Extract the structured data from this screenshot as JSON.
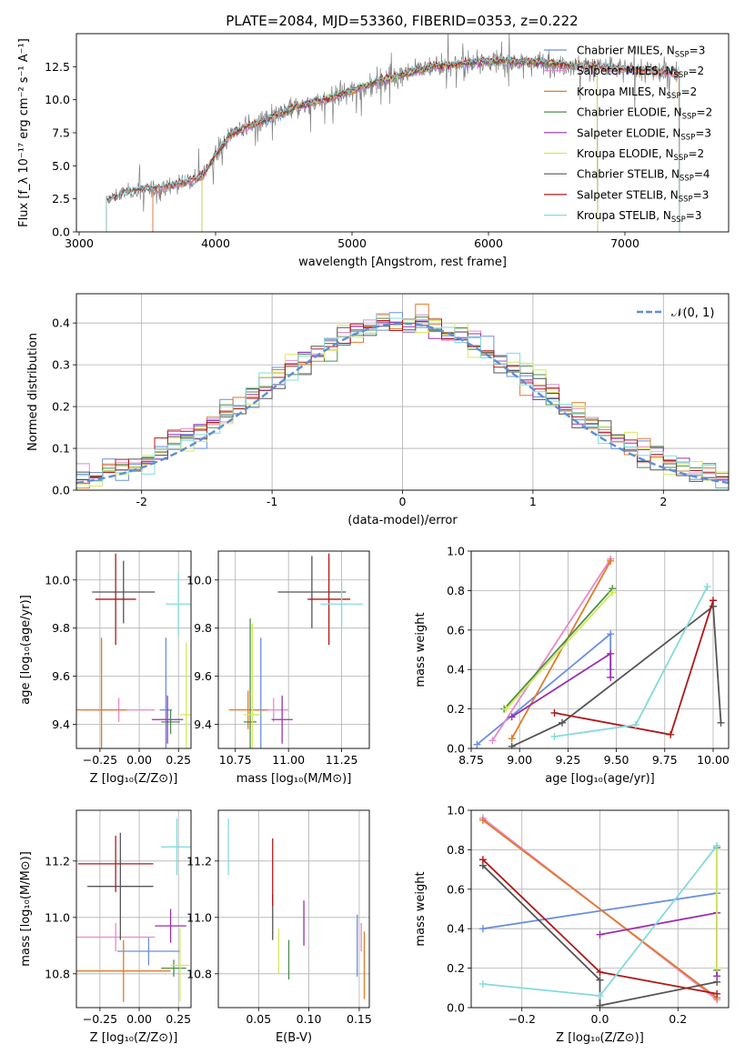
{
  "figure": {
    "title": "PLATE=2084, MJD=53360, FIBERID=0353, z=0.222"
  },
  "colors": {
    "Chabrier MILES": "#6a8fe0",
    "Salpeter MILES": "#e889c8",
    "Kroupa MILES": "#e07a2a",
    "Chabrier ELODIE": "#4a8f4a",
    "Salpeter ELODIE": "#9a2fb0",
    "Kroupa ELODIE": "#d4ea5a",
    "Chabrier STELIB": "#555555",
    "Salpeter STELIB": "#b01818",
    "Kroupa STELIB": "#84dadc",
    "data": "#808080",
    "normal": "#5b8fd8"
  },
  "chart_data": [
    {
      "type": "line",
      "panel": "spectrum",
      "xlabel": "wavelength [Angstrom, rest frame]",
      "ylabel": "Flux [f_λ 10⁻¹⁷ erg cm⁻² s⁻¹ A⁻¹]",
      "xlim": [
        2980,
        7760
      ],
      "ylim": [
        0,
        15
      ],
      "xticks": [
        3000,
        4000,
        5000,
        6000,
        7000
      ],
      "yticks": [
        0.0,
        2.5,
        5.0,
        7.5,
        10.0,
        12.5
      ],
      "grid": false,
      "legend_position": "top-right",
      "legend": [
        {
          "name": "Chabrier MILES",
          "nssp": 3
        },
        {
          "name": "Salpeter MILES",
          "nssp": 2
        },
        {
          "name": "Kroupa MILES",
          "nssp": 2
        },
        {
          "name": "Chabrier ELODIE",
          "nssp": 2
        },
        {
          "name": "Salpeter ELODIE",
          "nssp": 3
        },
        {
          "name": "Kroupa ELODIE",
          "nssp": 2
        },
        {
          "name": "Chabrier STELIB",
          "nssp": 4
        },
        {
          "name": "Salpeter STELIB",
          "nssp": 3
        },
        {
          "name": "Kroupa STELIB",
          "nssp": 3
        }
      ],
      "trend": {
        "x": [
          3200,
          3300,
          3400,
          3500,
          3600,
          3700,
          3800,
          3900,
          4000,
          4100,
          4200,
          4400,
          4600,
          4800,
          5000,
          5200,
          5400,
          5600,
          5800,
          6000,
          6200,
          6400,
          6600,
          6800,
          7000,
          7200,
          7400
        ],
        "y": [
          2.3,
          2.8,
          3.1,
          3.2,
          3.3,
          3.6,
          3.8,
          4.2,
          5.8,
          7.3,
          7.8,
          8.6,
          9.5,
          10.0,
          10.7,
          11.4,
          12.0,
          12.5,
          12.7,
          12.9,
          12.9,
          12.8,
          12.6,
          12.5,
          12.3,
          12.2,
          12.0
        ]
      },
      "model_ranges": {
        "MILES": [
          3540,
          7400
        ],
        "ELODIE": [
          3900,
          6800
        ],
        "STELIB": [
          3200,
          7400
        ]
      }
    },
    {
      "type": "histogram",
      "panel": "residuals",
      "xlabel": "(data-model)/error",
      "ylabel": "Normed distribution",
      "xlim": [
        -2.5,
        2.5
      ],
      "ylim": [
        0,
        0.47
      ],
      "xticks": [
        -2,
        -1,
        0,
        1,
        2
      ],
      "yticks": [
        0.0,
        0.1,
        0.2,
        0.3,
        0.4
      ],
      "grid": true,
      "bin_width": 0.1,
      "legend_position": "top-right",
      "legend": "𝒩(0, 1)",
      "normal": {
        "mean": 0,
        "sigma": 1
      }
    },
    {
      "type": "scatter",
      "panel": "age-vs-metallicity",
      "xlabel": "Z [log₁₀(Z/Z⊙)]",
      "ylabel": "age  [log₁₀(age/yr)]",
      "xlim": [
        -0.4,
        0.33
      ],
      "ylim": [
        9.3,
        10.12
      ],
      "xticks": [
        -0.25,
        0.0,
        0.25
      ],
      "xticklabels": [
        "−0.25",
        "0.00",
        "0.25"
      ],
      "yticks": [
        9.4,
        9.6,
        9.8,
        10.0
      ],
      "grid": true,
      "points": [
        {
          "series": "Chabrier MILES",
          "x": 0.17,
          "y": 9.46,
          "xerr": 0.04,
          "yerr": 0.3
        },
        {
          "series": "Salpeter MILES",
          "x": -0.13,
          "y": 9.46,
          "xerr": 0.23,
          "yerr": 0.05
        },
        {
          "series": "Kroupa MILES",
          "x": -0.24,
          "y": 9.46,
          "xerr": 0.16,
          "yerr": 0.3
        },
        {
          "series": "Chabrier ELODIE",
          "x": 0.2,
          "y": 9.41,
          "xerr": 0.06,
          "yerr": 0.05
        },
        {
          "series": "Salpeter ELODIE",
          "x": 0.18,
          "y": 9.42,
          "xerr": 0.1,
          "yerr": 0.1
        },
        {
          "series": "Kroupa ELODIE",
          "x": 0.3,
          "y": 9.44,
          "xerr": 0.04,
          "yerr": 0.3
        },
        {
          "series": "Chabrier STELIB",
          "x": -0.1,
          "y": 9.95,
          "xerr": 0.2,
          "yerr": 0.13
        },
        {
          "series": "Salpeter STELIB",
          "x": -0.15,
          "y": 9.92,
          "xerr": 0.13,
          "yerr": 0.19
        },
        {
          "series": "Kroupa STELIB",
          "x": 0.25,
          "y": 9.9,
          "xerr": 0.08,
          "yerr": 0.13
        }
      ]
    },
    {
      "type": "scatter",
      "panel": "age-vs-mass",
      "xlabel": "mass [log₁₀(M/M⊙)]",
      "ylabel": "",
      "xlim": [
        10.67,
        11.38
      ],
      "ylim": [
        9.3,
        10.12
      ],
      "xticks": [
        10.75,
        11.0,
        11.25
      ],
      "xticklabels": [
        "10.75",
        "11.00",
        "11.25"
      ],
      "yticks": [
        9.4,
        9.6,
        9.8,
        10.0
      ],
      "grid": true,
      "points": [
        {
          "series": "Chabrier MILES",
          "x": 10.87,
          "y": 9.46,
          "xerr": 0.03,
          "yerr": 0.3
        },
        {
          "series": "Salpeter MILES",
          "x": 10.93,
          "y": 9.46,
          "xerr": 0.07,
          "yerr": 0.05
        },
        {
          "series": "Kroupa MILES",
          "x": 10.81,
          "y": 9.46,
          "xerr": 0.09,
          "yerr": 0.08
        },
        {
          "series": "Chabrier ELODIE",
          "x": 10.82,
          "y": 9.41,
          "xerr": 0.03,
          "yerr": 0.43
        },
        {
          "series": "Salpeter ELODIE",
          "x": 10.97,
          "y": 9.42,
          "xerr": 0.05,
          "yerr": 0.1
        },
        {
          "series": "Kroupa ELODIE",
          "x": 10.83,
          "y": 9.44,
          "xerr": 0.04,
          "yerr": 0.38
        },
        {
          "series": "Chabrier STELIB",
          "x": 11.11,
          "y": 9.95,
          "xerr": 0.16,
          "yerr": 0.15
        },
        {
          "series": "Salpeter STELIB",
          "x": 11.19,
          "y": 9.92,
          "xerr": 0.1,
          "yerr": 0.19
        },
        {
          "series": "Kroupa STELIB",
          "x": 11.25,
          "y": 9.9,
          "xerr": 0.1,
          "yerr": 0.1
        }
      ]
    },
    {
      "type": "line",
      "panel": "mass-weight-vs-age",
      "xlabel": "age  [log₁₀(age/yr)]",
      "ylabel": "mass weight",
      "xlim": [
        8.75,
        10.08
      ],
      "ylim": [
        0,
        1.0
      ],
      "xticks": [
        8.75,
        9.0,
        9.25,
        9.5,
        9.75,
        10.0
      ],
      "xticklabels": [
        "8.75",
        "9.00",
        "9.25",
        "9.50",
        "9.75",
        "10.00"
      ],
      "yticks": [
        0.0,
        0.2,
        0.4,
        0.6,
        0.8,
        1.0
      ],
      "grid": true,
      "series": [
        {
          "name": "Chabrier MILES",
          "x": [
            8.78,
            9.47,
            9.47
          ],
          "y": [
            0.02,
            0.58,
            0.4
          ]
        },
        {
          "name": "Salpeter MILES",
          "x": [
            8.86,
            9.47
          ],
          "y": [
            0.04,
            0.96
          ]
        },
        {
          "name": "Kroupa MILES",
          "x": [
            8.96,
            9.47
          ],
          "y": [
            0.05,
            0.95
          ]
        },
        {
          "name": "Chabrier ELODIE",
          "x": [
            8.92,
            9.48
          ],
          "y": [
            0.2,
            0.81
          ]
        },
        {
          "name": "Salpeter ELODIE",
          "x": [
            8.96,
            9.47,
            9.47
          ],
          "y": [
            0.16,
            0.48,
            0.36
          ]
        },
        {
          "name": "Kroupa ELODIE",
          "x": [
            8.93,
            9.48
          ],
          "y": [
            0.2,
            0.79
          ]
        },
        {
          "name": "Chabrier STELIB",
          "x": [
            8.96,
            9.22,
            10.0,
            10.04
          ],
          "y": [
            0.01,
            0.13,
            0.72,
            0.13
          ]
        },
        {
          "name": "Salpeter STELIB",
          "x": [
            9.18,
            9.78,
            10.0
          ],
          "y": [
            0.18,
            0.07,
            0.75
          ]
        },
        {
          "name": "Kroupa STELIB",
          "x": [
            9.18,
            9.6,
            9.97
          ],
          "y": [
            0.06,
            0.12,
            0.82
          ]
        }
      ]
    },
    {
      "type": "scatter",
      "panel": "mass-vs-metallicity",
      "xlabel": "Z [log₁₀(Z/Z⊙)]",
      "ylabel": "mass [log₁₀(M/M⊙)]",
      "xlim": [
        -0.4,
        0.33
      ],
      "ylim": [
        10.68,
        11.38
      ],
      "xticks": [
        -0.25,
        0.0,
        0.25
      ],
      "xticklabels": [
        "−0.25",
        "0.00",
        "0.25"
      ],
      "yticks": [
        10.8,
        11.0,
        11.2
      ],
      "grid": true,
      "points": [
        {
          "series": "Chabrier MILES",
          "x": 0.06,
          "y": 10.88,
          "xerr": 0.2,
          "yerr": 0.05
        },
        {
          "series": "Salpeter MILES",
          "x": -0.15,
          "y": 10.93,
          "xerr": 0.25,
          "yerr": 0.05
        },
        {
          "series": "Kroupa MILES",
          "x": -0.1,
          "y": 10.81,
          "xerr": 0.3,
          "yerr": 0.11
        },
        {
          "series": "Chabrier ELODIE",
          "x": 0.22,
          "y": 10.82,
          "xerr": 0.08,
          "yerr": 0.03
        },
        {
          "series": "Salpeter ELODIE",
          "x": 0.2,
          "y": 10.97,
          "xerr": 0.1,
          "yerr": 0.06
        },
        {
          "series": "Kroupa ELODIE",
          "x": 0.26,
          "y": 10.83,
          "xerr": 0.06,
          "yerr": 0.13
        },
        {
          "series": "Chabrier STELIB",
          "x": -0.12,
          "y": 11.11,
          "xerr": 0.21,
          "yerr": 0.19
        },
        {
          "series": "Salpeter STELIB",
          "x": -0.15,
          "y": 11.19,
          "xerr": 0.24,
          "yerr": 0.1
        },
        {
          "series": "Kroupa STELIB",
          "x": 0.24,
          "y": 11.25,
          "xerr": 0.1,
          "yerr": 0.1
        }
      ]
    },
    {
      "type": "scatter",
      "panel": "mass-vs-extinction",
      "xlabel": "E(B-V)",
      "ylabel": "",
      "xlim": [
        0.01,
        0.16
      ],
      "ylim": [
        10.68,
        11.38
      ],
      "xticks": [
        0.05,
        0.1,
        0.15
      ],
      "xticklabels": [
        "0.05",
        "0.10",
        "0.15"
      ],
      "yticks": [
        10.8,
        11.0,
        11.2
      ],
      "grid": true,
      "points": [
        {
          "series": "Chabrier MILES",
          "x": 0.148,
          "y": 10.9,
          "xerr": 0,
          "yerr": 0.11
        },
        {
          "series": "Salpeter MILES",
          "x": 0.152,
          "y": 10.93,
          "xerr": 0,
          "yerr": 0.05
        },
        {
          "series": "Kroupa MILES",
          "x": 0.155,
          "y": 10.83,
          "xerr": 0,
          "yerr": 0.12
        },
        {
          "series": "Chabrier ELODIE",
          "x": 0.08,
          "y": 10.85,
          "xerr": 0,
          "yerr": 0.07
        },
        {
          "series": "Salpeter ELODIE",
          "x": 0.095,
          "y": 10.98,
          "xerr": 0,
          "yerr": 0.08
        },
        {
          "series": "Kroupa ELODIE",
          "x": 0.07,
          "y": 10.88,
          "xerr": 0,
          "yerr": 0.08
        },
        {
          "series": "Chabrier STELIB",
          "x": 0.064,
          "y": 11.0,
          "xerr": 0,
          "yerr": 0.08
        },
        {
          "series": "Salpeter STELIB",
          "x": 0.064,
          "y": 11.16,
          "xerr": 0,
          "yerr": 0.12
        },
        {
          "series": "Kroupa STELIB",
          "x": 0.02,
          "y": 11.25,
          "xerr": 0,
          "yerr": 0.1
        }
      ]
    },
    {
      "type": "line",
      "panel": "mass-weight-vs-metallicity",
      "xlabel": "Z [log₁₀(Z/Z⊙)]",
      "ylabel": "mass weight",
      "xlim": [
        -0.33,
        0.33
      ],
      "ylim": [
        0,
        1.0
      ],
      "xticks": [
        -0.2,
        0.0,
        0.2
      ],
      "xticklabels": [
        "−0.2",
        "0.0",
        "0.2"
      ],
      "yticks": [
        0.0,
        0.2,
        0.4,
        0.6,
        0.8,
        1.0
      ],
      "grid": true,
      "series": [
        {
          "name": "Chabrier MILES",
          "x": [
            -0.3,
            0.3
          ],
          "y": [
            0.4,
            0.58
          ]
        },
        {
          "name": "Salpeter MILES",
          "x": [
            -0.3,
            0.3
          ],
          "y": [
            0.96,
            0.04
          ]
        },
        {
          "name": "Kroupa MILES",
          "x": [
            -0.3,
            0.3
          ],
          "y": [
            0.95,
            0.05
          ]
        },
        {
          "name": "Chabrier ELODIE",
          "x": [
            0.3,
            0.3
          ],
          "y": [
            0.19,
            0.81
          ]
        },
        {
          "name": "Salpeter ELODIE",
          "x": [
            0.0,
            0.3,
            0.3
          ],
          "y": [
            0.37,
            0.48,
            0.16
          ]
        },
        {
          "name": "Kroupa ELODIE",
          "x": [
            0.3,
            0.3
          ],
          "y": [
            0.2,
            0.8
          ]
        },
        {
          "name": "Chabrier STELIB",
          "x": [
            -0.3,
            0.0,
            0.0,
            0.3
          ],
          "y": [
            0.72,
            0.14,
            0.01,
            0.13
          ]
        },
        {
          "name": "Salpeter STELIB",
          "x": [
            -0.3,
            0.0,
            0.3
          ],
          "y": [
            0.75,
            0.18,
            0.07
          ]
        },
        {
          "name": "Kroupa STELIB",
          "x": [
            -0.3,
            0.0,
            0.3
          ],
          "y": [
            0.12,
            0.06,
            0.82
          ]
        }
      ]
    }
  ]
}
